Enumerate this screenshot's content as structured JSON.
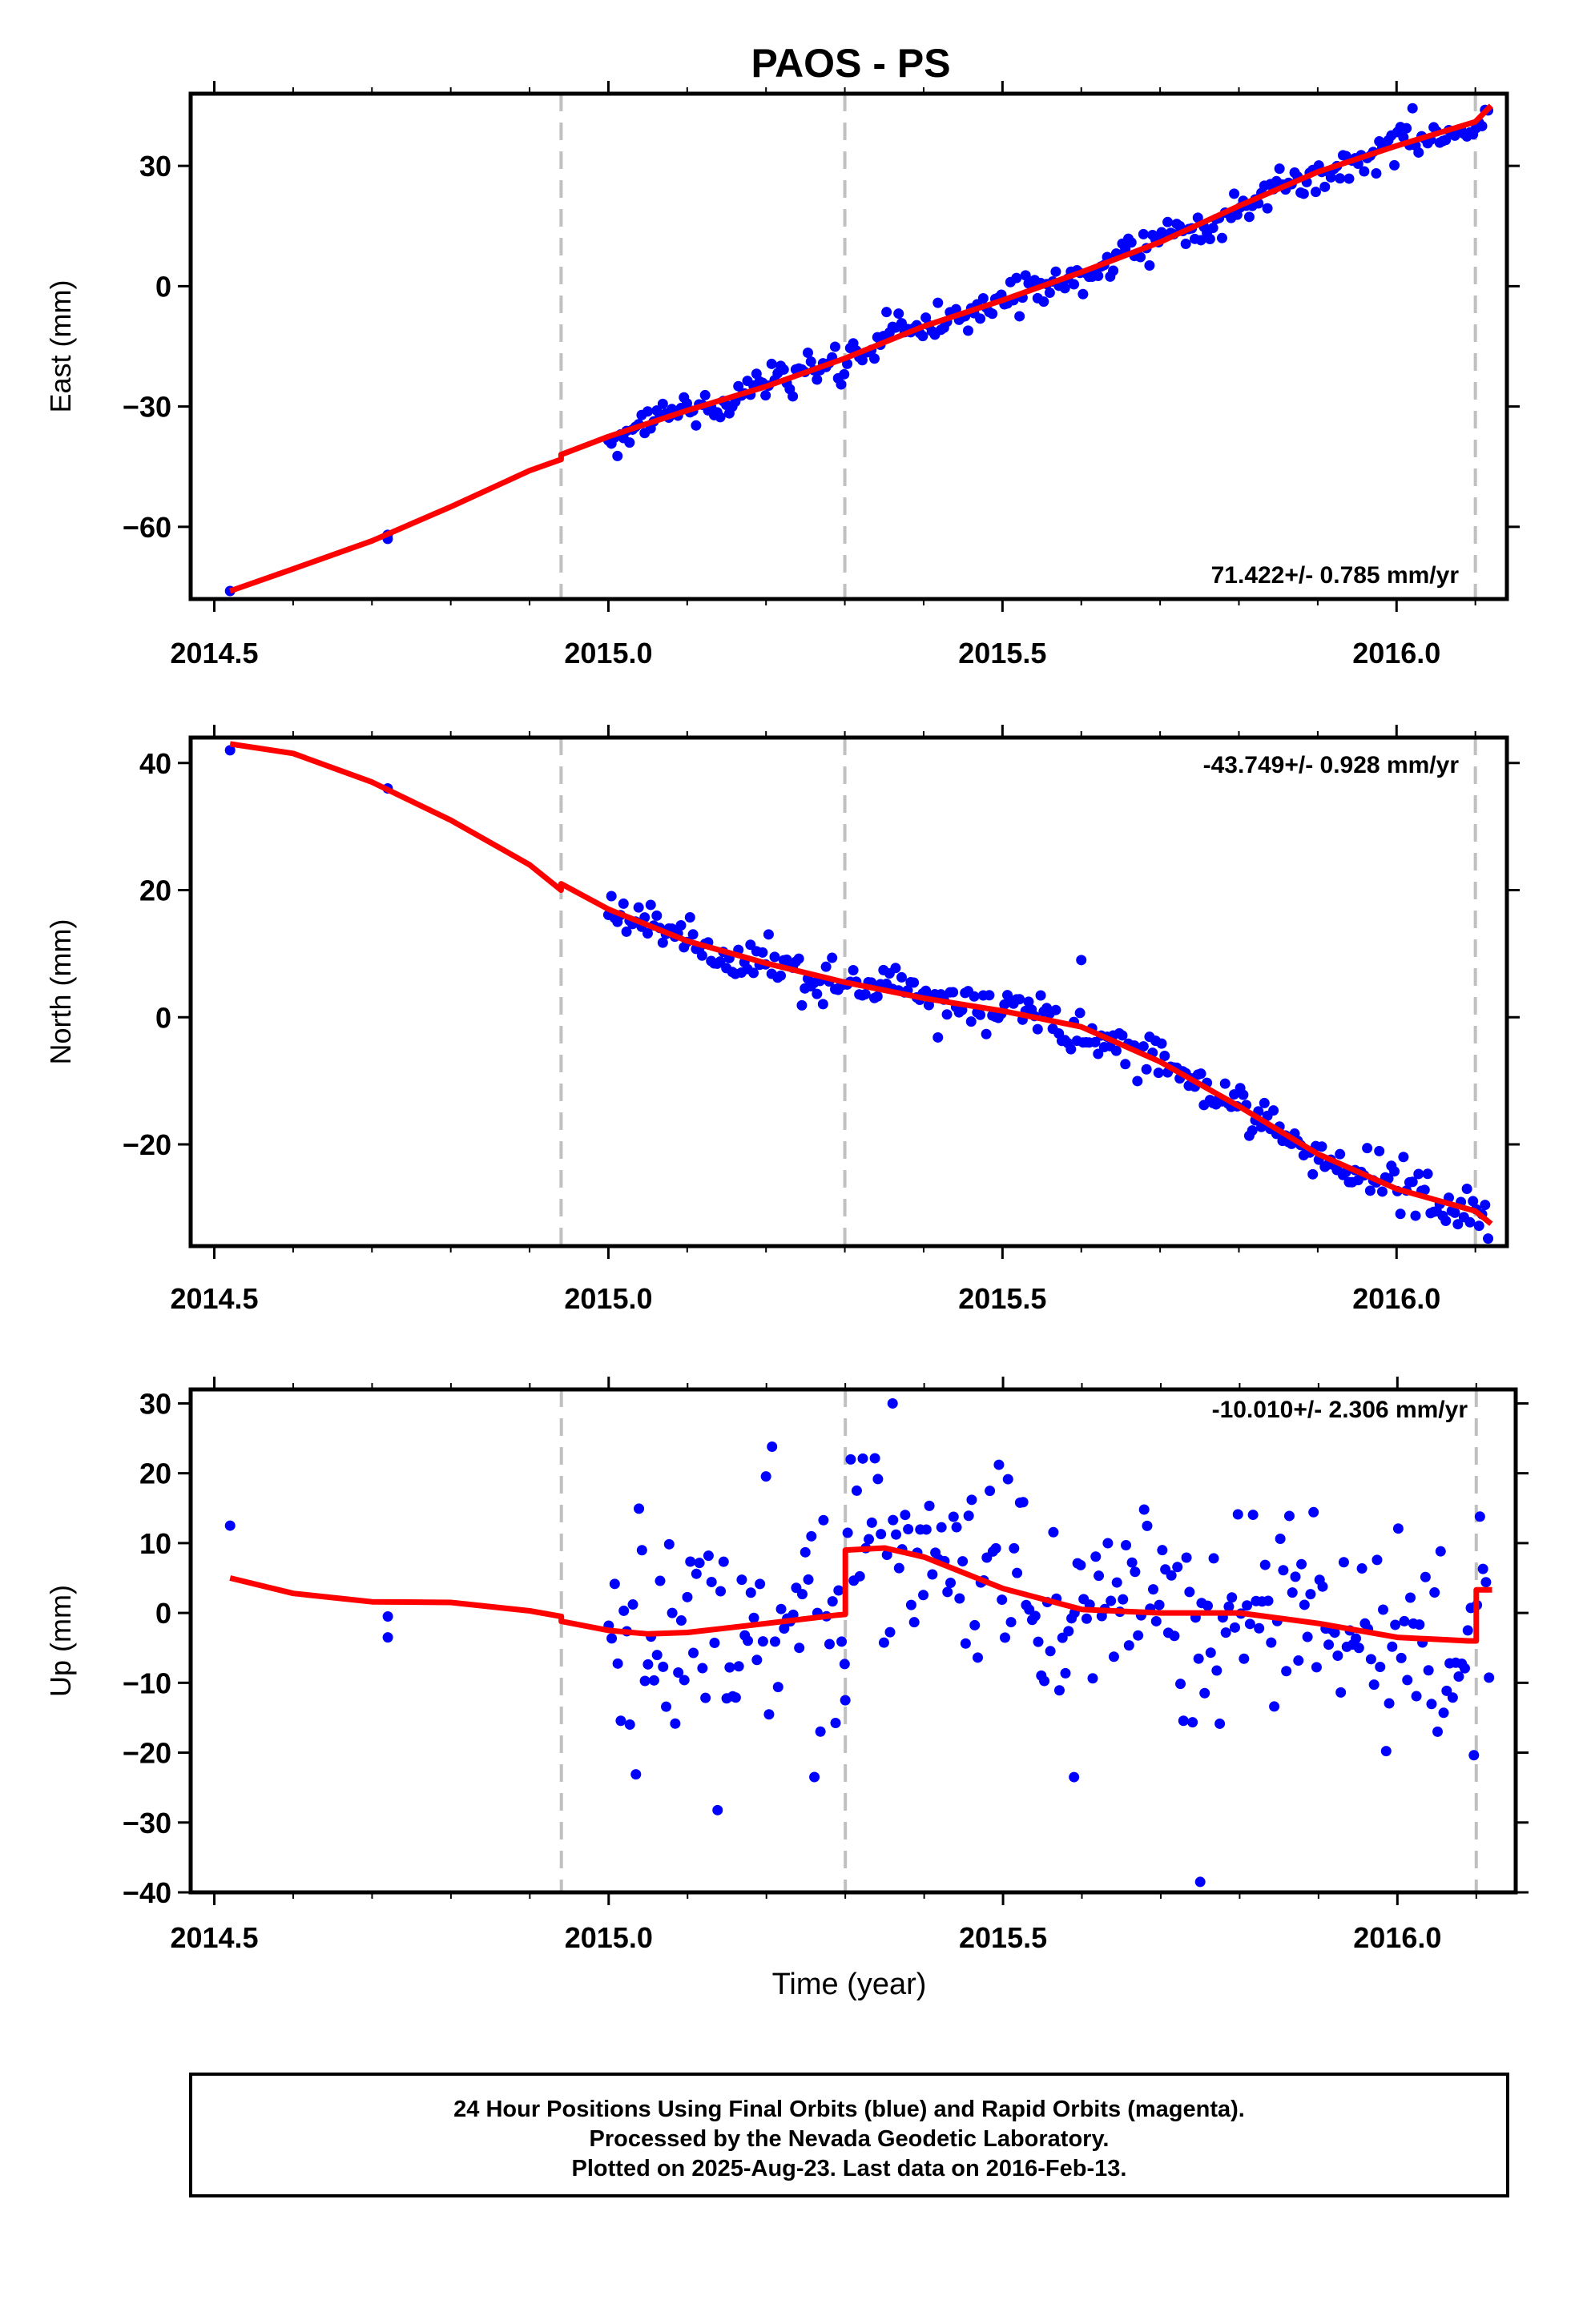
{
  "figure": {
    "title": "PAOS - PS",
    "xlabel": "Time (year)",
    "footer": [
      "24 Hour Positions Using Final Orbits (blue) and Rapid Orbits (magenta).",
      "Processed by the Nevada Geodetic Laboratory.",
      "Plotted on 2025-Aug-23. Last data on 2016-Feb-13."
    ],
    "colors": {
      "points": "#0000ff",
      "model": "#ff0000",
      "event_lines": "#c0c0c0",
      "axes": "#000000"
    }
  },
  "chart_data": [
    {
      "type": "scatter",
      "ylabel": "East (mm)",
      "rate_label": "71.422+/- 0.785 mm/yr",
      "xlim": [
        2014.47,
        2016.14
      ],
      "ylim": [
        -78,
        48
      ],
      "x_ticks": [
        2014.5,
        2015.0,
        2015.5,
        2016.0
      ],
      "x_tick_labels": [
        "2014.5",
        "2015.0",
        "2015.5",
        "2016.0"
      ],
      "y_ticks": [
        -60,
        -30,
        0,
        30
      ],
      "y_tick_labels": [
        "−60",
        "−30",
        "0",
        "30"
      ],
      "event_lines": [
        2014.94,
        2015.3,
        2016.1
      ],
      "trend": {
        "rate_mm_per_yr": 71.422,
        "wiggle_amplitude": 1.6,
        "noise": 2.2
      },
      "series": [
        {
          "kind": "points",
          "x": [
            2014.52,
            2014.72,
            2014.72
          ],
          "y": [
            -76,
            -63,
            -62
          ]
        },
        {
          "kind": "model",
          "x": [
            2014.52,
            2014.6,
            2014.7,
            2014.8,
            2014.9,
            2014.94,
            2014.94,
            2015.0,
            2015.1,
            2015.2,
            2015.3,
            2015.4,
            2015.5,
            2015.6,
            2015.7,
            2015.8,
            2015.9,
            2016.0,
            2016.1,
            2016.12
          ],
          "y": [
            -76,
            -70.5,
            -63.5,
            -55,
            -46,
            -43.2,
            -42,
            -37.5,
            -31,
            -25,
            -18,
            -10,
            -3.5,
            3.5,
            11,
            20,
            28.5,
            35,
            41,
            45
          ]
        }
      ]
    },
    {
      "type": "scatter",
      "ylabel": "North (mm)",
      "rate_label": "-43.749+/- 0.928 mm/yr",
      "xlim": [
        2014.47,
        2016.14
      ],
      "ylim": [
        -36,
        44
      ],
      "x_ticks": [
        2014.5,
        2015.0,
        2015.5,
        2016.0
      ],
      "x_tick_labels": [
        "2014.5",
        "2015.0",
        "2015.5",
        "2016.0"
      ],
      "y_ticks": [
        -20,
        0,
        20,
        40
      ],
      "y_tick_labels": [
        "−20",
        "0",
        "20",
        "40"
      ],
      "event_lines": [
        2014.94,
        2015.3,
        2016.1
      ],
      "trend": {
        "rate_mm_per_yr": -43.749,
        "wiggle_amplitude": 1.0,
        "noise": 1.8
      },
      "series": [
        {
          "kind": "points",
          "x": [
            2014.52,
            2014.72,
            2015.6
          ],
          "y": [
            42,
            36,
            9
          ]
        },
        {
          "kind": "model",
          "x": [
            2014.52,
            2014.6,
            2014.7,
            2014.8,
            2014.9,
            2014.94,
            2014.94,
            2015.0,
            2015.1,
            2015.2,
            2015.3,
            2015.4,
            2015.5,
            2015.6,
            2015.7,
            2015.8,
            2015.9,
            2016.0,
            2016.1,
            2016.12
          ],
          "y": [
            43,
            41.5,
            37,
            31,
            24,
            20,
            21,
            17,
            12,
            8.5,
            5.5,
            3,
            1,
            -1.5,
            -7,
            -14,
            -21.5,
            -27,
            -30.5,
            -32.5
          ]
        }
      ]
    },
    {
      "type": "scatter",
      "ylabel": "Up (mm)",
      "rate_label": "-10.010+/- 2.306 mm/yr",
      "xlim": [
        2014.47,
        2016.15
      ],
      "ylim": [
        -40,
        32
      ],
      "x_ticks": [
        2014.5,
        2015.0,
        2015.5,
        2016.0
      ],
      "x_tick_labels": [
        "2014.5",
        "2015.0",
        "2015.5",
        "2016.0"
      ],
      "y_ticks": [
        -40,
        -30,
        -20,
        -10,
        0,
        10,
        20,
        30
      ],
      "y_tick_labels": [
        "−40",
        "−30",
        "−20",
        "−10",
        "0",
        "10",
        "20",
        "30"
      ],
      "event_lines": [
        2014.94,
        2015.3,
        2016.1
      ],
      "trend": {
        "rate_mm_per_yr": -10.01,
        "wiggle_amplitude": 0.5,
        "noise": 8.0
      },
      "series": [
        {
          "kind": "points",
          "x": [
            2014.52,
            2014.72,
            2014.72,
            2015.36,
            2015.75,
            2015.3,
            2015.59
          ],
          "y": [
            12.5,
            -0.5,
            -3.5,
            30,
            -38.5,
            -12.5,
            -23.5
          ]
        },
        {
          "kind": "model",
          "x": [
            2014.52,
            2014.6,
            2014.7,
            2014.8,
            2014.9,
            2014.94,
            2014.94,
            2015.0,
            2015.05,
            2015.1,
            2015.2,
            2015.29,
            2015.3,
            2015.3,
            2015.35,
            2015.4,
            2015.5,
            2015.6,
            2015.7,
            2015.8,
            2015.9,
            2016.0,
            2016.09,
            2016.1,
            2016.1,
            2016.12
          ],
          "y": [
            5,
            2.8,
            1.6,
            1.5,
            0.3,
            -0.5,
            -1.2,
            -2.5,
            -3,
            -2.8,
            -1.5,
            -0.3,
            -0.2,
            9,
            9.3,
            8,
            3.5,
            0.5,
            0,
            0,
            -1.5,
            -3.5,
            -4,
            -4,
            3.3,
            3.3
          ]
        }
      ]
    }
  ]
}
